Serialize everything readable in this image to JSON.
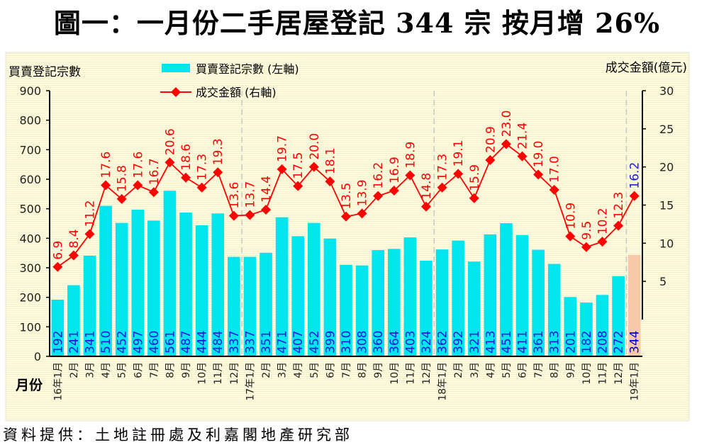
{
  "chart_data": {
    "type": "bar+line",
    "title": "圖一：一月份二手居屋登記 344 宗  按月增 26%",
    "ylabel_left": "買賣登記宗數",
    "ylabel_right": "成交金額(億元)",
    "xlabel": "月份",
    "ylim_left": [
      0,
      900
    ],
    "yticks_left": [
      "0",
      "100",
      "200",
      "300",
      "400",
      "500",
      "600",
      "700",
      "800",
      "900"
    ],
    "ylim_right": [
      0,
      30
    ],
    "yticks_right": [
      "5",
      "10",
      "15",
      "20",
      "25",
      "30"
    ],
    "categories": [
      "16年1月",
      "2月",
      "3月",
      "4月",
      "5月",
      "6月",
      "7月",
      "8月",
      "9月",
      "10月",
      "11月",
      "12月",
      "17年1月",
      "2月",
      "3月",
      "4月",
      "5月",
      "6月",
      "7月",
      "8月",
      "9月",
      "10月",
      "11月",
      "12月",
      "18年1月",
      "2月",
      "3月",
      "4月",
      "5月",
      "6月",
      "7月",
      "8月",
      "9月",
      "10月",
      "11月",
      "12月",
      "19年1月"
    ],
    "series": [
      {
        "name": "買賣登記宗數 (左軸)",
        "type": "bar",
        "axis": "left",
        "color": "#00e5ee",
        "highlight_color": "#f7c9a8",
        "values": [
          192,
          241,
          341,
          510,
          452,
          497,
          460,
          561,
          487,
          444,
          484,
          337,
          337,
          351,
          471,
          407,
          452,
          399,
          310,
          308,
          360,
          364,
          403,
          324,
          362,
          392,
          321,
          413,
          451,
          411,
          361,
          313,
          201,
          182,
          208,
          272,
          344
        ]
      },
      {
        "name": "成交金額 (右軸)",
        "type": "line",
        "axis": "right",
        "color": "#ff0000",
        "values": [
          6.9,
          8.4,
          11.2,
          17.6,
          15.8,
          17.6,
          16.7,
          20.6,
          18.6,
          17.3,
          19.3,
          13.6,
          13.7,
          14.4,
          19.7,
          17.5,
          20.0,
          18.1,
          13.5,
          13.9,
          16.2,
          16.9,
          18.9,
          14.8,
          17.3,
          19.1,
          15.9,
          20.9,
          23.0,
          21.4,
          19.0,
          17.0,
          10.9,
          9.5,
          10.2,
          12.3,
          16.2
        ],
        "labels": [
          "6.9",
          "8.4",
          "11.2",
          "17.6",
          "15.8",
          "17.6",
          "16.7",
          "20.6",
          "18.6",
          "17.3",
          "19.3",
          "13.6",
          "13.7",
          "14.4",
          "19.7",
          "17.5",
          "20.0",
          "18.1",
          "13.5",
          "13.9",
          "16.2",
          "16.9",
          "18.9",
          "14.8",
          "17.3",
          "19.1",
          "15.9",
          "20.9",
          "23.0",
          "21.4",
          "19.0",
          "17.0",
          "10.9",
          "9.5",
          "10.2",
          "12.3",
          "16.2"
        ]
      }
    ],
    "legend_position": "top-left"
  },
  "source": "資料提供：土地註冊處及利嘉閣地產研究部"
}
